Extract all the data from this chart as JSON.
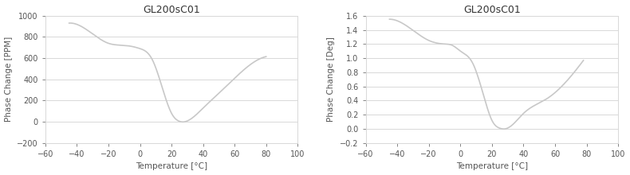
{
  "title": "GL200sC01",
  "xlabel": "Temperature [°C]",
  "left_ylabel": "Phase Change [PPM]",
  "right_ylabel": "Phase Change [Deg]",
  "xlim": [
    -60,
    100
  ],
  "left_ylim": [
    -200,
    1000
  ],
  "right_ylim": [
    -0.2,
    1.6
  ],
  "left_yticks": [
    -200,
    0,
    200,
    400,
    600,
    800,
    1000
  ],
  "right_yticks": [
    -0.2,
    0.0,
    0.2,
    0.4,
    0.6,
    0.8,
    1.0,
    1.2,
    1.4,
    1.6
  ],
  "xticks": [
    -60,
    -40,
    -20,
    0,
    20,
    40,
    60,
    80,
    100
  ],
  "left_x": [
    -45,
    -35,
    -20,
    -10,
    -5,
    0,
    8,
    15,
    20,
    25,
    28,
    32,
    40,
    55,
    65,
    80
  ],
  "left_y": [
    930,
    880,
    740,
    720,
    710,
    690,
    580,
    280,
    80,
    5,
    0,
    25,
    130,
    340,
    480,
    615
  ],
  "right_x": [
    -45,
    -35,
    -20,
    -10,
    -5,
    0,
    8,
    15,
    20,
    25,
    28,
    32,
    40,
    55,
    65,
    78
  ],
  "right_y": [
    1.55,
    1.47,
    1.25,
    1.2,
    1.18,
    1.1,
    0.92,
    0.45,
    0.12,
    0.01,
    0.0,
    0.04,
    0.22,
    0.43,
    0.62,
    0.97
  ],
  "line_color": "#c8c8c8",
  "line_width": 1.2,
  "bg_color": "#ffffff",
  "grid_color": "#d8d8d8",
  "title_fontsize": 9,
  "label_fontsize": 7.5,
  "tick_fontsize": 7
}
